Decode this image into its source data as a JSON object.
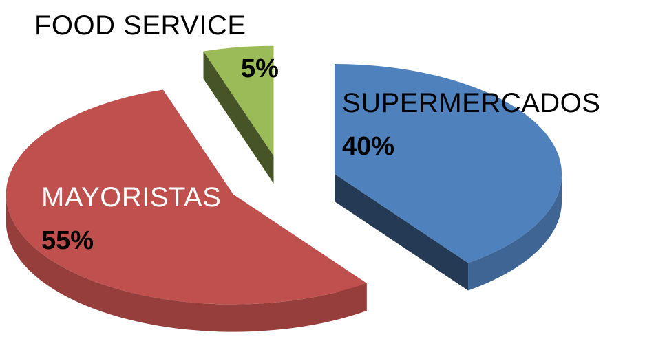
{
  "chart_data": {
    "type": "pie",
    "categories": [
      "SUPERMERCADOS",
      "MAYORISTAS",
      "FOOD SERVICE"
    ],
    "values": [
      40,
      55,
      5
    ],
    "value_labels": [
      "40%",
      "55%",
      "5%"
    ],
    "colors": [
      "#4f81bd",
      "#c0504d",
      "#9bbb59"
    ]
  }
}
